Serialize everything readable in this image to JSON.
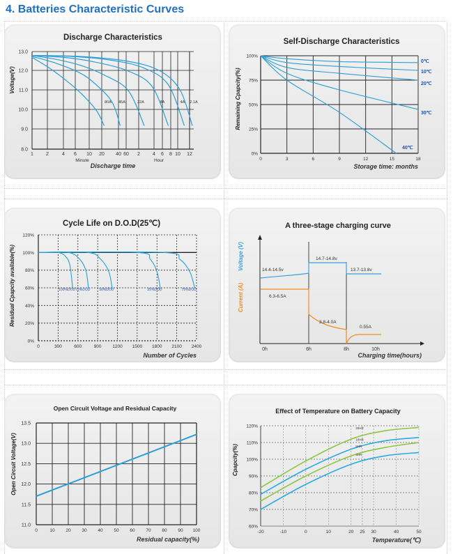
{
  "page": {
    "title": "4.  Batteries Characteristic Curves"
  },
  "chart_data": [
    {
      "id": "discharge",
      "type": "line",
      "title": "Discharge Characteristics",
      "ylabel": "Voltage(V)",
      "xlabel": "Discharge time",
      "x_group_labels": [
        "Minute",
        "Hour"
      ],
      "y_ticks": [
        "13.0",
        "12.0",
        "11.0",
        "10.0",
        "9.0",
        "8.0"
      ],
      "ylim": [
        8,
        13
      ],
      "x_ticks": [
        "1",
        "2",
        "4",
        "6",
        "10",
        "20",
        "40",
        "60",
        "2",
        "4",
        "6",
        "8",
        "10",
        "12"
      ],
      "series": [
        {
          "name": "80A",
          "points": [
            [
              0,
              12.7
            ],
            [
              2,
              12.2
            ],
            [
              4,
              11.6
            ],
            [
              6,
              10.9
            ],
            [
              8,
              10.0
            ],
            [
              9,
              9.2
            ]
          ]
        },
        {
          "name": "45A",
          "points": [
            [
              0,
              12.75
            ],
            [
              3,
              12.4
            ],
            [
              6,
              11.9
            ],
            [
              8,
              11.3
            ],
            [
              10,
              10.4
            ],
            [
              11,
              9.2
            ]
          ]
        },
        {
          "name": "22A",
          "points": [
            [
              0,
              12.8
            ],
            [
              3,
              12.6
            ],
            [
              6,
              12.3
            ],
            [
              9,
              11.8
            ],
            [
              12,
              11.0
            ],
            [
              14,
              9.2
            ]
          ]
        },
        {
          "name": "8A",
          "points": [
            [
              0,
              12.8
            ],
            [
              4,
              12.7
            ],
            [
              8,
              12.45
            ],
            [
              12,
              12.0
            ],
            [
              15,
              11.2
            ],
            [
              17,
              9.2
            ]
          ]
        },
        {
          "name": "4A",
          "points": [
            [
              0,
              12.8
            ],
            [
              5,
              12.75
            ],
            [
              10,
              12.55
            ],
            [
              14,
              12.15
            ],
            [
              17,
              11.3
            ],
            [
              19,
              9.2
            ]
          ]
        },
        {
          "name": "2.1A",
          "points": [
            [
              0,
              12.8
            ],
            [
              6,
              12.75
            ],
            [
              12,
              12.5
            ],
            [
              16,
              12.0
            ],
            [
              18.5,
              11.0
            ],
            [
              20,
              9.2
            ]
          ]
        }
      ]
    },
    {
      "id": "self-discharge",
      "type": "line",
      "title": "Self-Discharge Characteristics",
      "ylabel": "Remaining Cpapcity(%)",
      "xlabel": "Storage time: months",
      "y_ticks": [
        "100%",
        "75%",
        "50%",
        "25%",
        "0%"
      ],
      "x_ticks": [
        "0",
        "3",
        "6",
        "9",
        "12",
        "15",
        "18"
      ],
      "xlim": [
        0,
        18
      ],
      "ylim": [
        0,
        100
      ],
      "series": [
        {
          "name": "0℃",
          "points": [
            [
              0,
              100
            ],
            [
              3,
              97
            ],
            [
              9,
              94
            ],
            [
              18,
              93
            ]
          ]
        },
        {
          "name": "10℃",
          "points": [
            [
              0,
              100
            ],
            [
              3,
              93
            ],
            [
              9,
              89
            ],
            [
              18,
              85
            ]
          ]
        },
        {
          "name": "20℃",
          "points": [
            [
              0,
              100
            ],
            [
              3,
              88
            ],
            [
              9,
              82
            ],
            [
              18,
              75
            ]
          ]
        },
        {
          "name": "30℃",
          "points": [
            [
              0,
              100
            ],
            [
              3,
              82
            ],
            [
              9,
              65
            ],
            [
              18,
              45
            ]
          ]
        },
        {
          "name": "40℃",
          "points": [
            [
              0,
              100
            ],
            [
              3,
              75
            ],
            [
              9,
              42
            ],
            [
              15.5,
              0
            ]
          ]
        }
      ]
    },
    {
      "id": "cycle-life",
      "type": "line",
      "title": "Cycle Life on D.O.D(25℃)",
      "ylabel": "Residual Cpapcity available(%)",
      "xlabel": "Number of Cycles",
      "y_ticks": [
        "120%",
        "100%",
        "80%",
        "60%",
        "40%",
        "20%",
        "0%"
      ],
      "x_ticks": [
        "0",
        "300",
        "600",
        "900",
        "1200",
        "1500",
        "1800",
        "2100",
        "2400"
      ],
      "xlim": [
        0,
        2400
      ],
      "ylim": [
        0,
        120
      ],
      "series": [
        {
          "name": "100%DOD",
          "points": [
            [
              0,
              100
            ],
            [
              300,
              100
            ],
            [
              420,
              95
            ],
            [
              480,
              85
            ],
            [
              520,
              60
            ]
          ]
        },
        {
          "name": "75%DOD",
          "points": [
            [
              0,
              100
            ],
            [
              450,
              100
            ],
            [
              620,
              93
            ],
            [
              720,
              80
            ],
            [
              760,
              60
            ]
          ]
        },
        {
          "name": "50%DOD",
          "points": [
            [
              0,
              100
            ],
            [
              750,
              100
            ],
            [
              950,
              92
            ],
            [
              1070,
              78
            ],
            [
              1120,
              60
            ]
          ]
        },
        {
          "name": "25%DOD",
          "points": [
            [
              0,
              100
            ],
            [
              1500,
              100
            ],
            [
              1700,
              92
            ],
            [
              1800,
              78
            ],
            [
              1850,
              60
            ]
          ]
        },
        {
          "name": "75%DOD",
          "points": [
            [
              0,
              100
            ],
            [
              1900,
              100
            ],
            [
              2150,
              92
            ],
            [
              2300,
              78
            ],
            [
              2370,
              60
            ]
          ]
        }
      ]
    },
    {
      "id": "charging",
      "type": "line",
      "title": "A three-stage charging curve",
      "ylabel_voltage": "Voltage (V)",
      "ylabel_current": "Current (A)",
      "xlabel": "Charging time(hours)",
      "x_ticks": [
        "0h",
        "6h",
        "8h",
        "10h"
      ],
      "voltage_labels": [
        "14.4-14.5v",
        "14.7-14.8v",
        "13.7-13.8v"
      ],
      "current_labels": [
        "6.3-6.5A",
        "3.8-4.0A",
        "0.55A"
      ],
      "colors": {
        "voltage": "#3aa0e0",
        "current": "#f08c1e"
      }
    },
    {
      "id": "ocv",
      "type": "line",
      "title": "Open Circuit Voltage and Residual Capacity",
      "ylabel": "Open Circuit Voltage(V)",
      "xlabel": "Residual capacity(%)",
      "y_ticks": [
        "13.5",
        "13.0",
        "12.5",
        "12.0",
        "11.5",
        "11.0"
      ],
      "x_ticks": [
        "0",
        "10",
        "20",
        "30",
        "40",
        "50",
        "60",
        "70",
        "80",
        "90",
        "100"
      ],
      "xlim": [
        0,
        100
      ],
      "ylim": [
        11.0,
        13.5
      ],
      "series": [
        {
          "points": [
            [
              0,
              11.7
            ],
            [
              100,
              13.22
            ]
          ]
        }
      ]
    },
    {
      "id": "temperature",
      "type": "line",
      "title": "Effect of Temperature on Battery Capacity",
      "ylabel": "Cpapcity(%)",
      "xlabel": "Temperature(℃)",
      "y_ticks": [
        "120%",
        "110%",
        "100%",
        "90%",
        "80%",
        "70%",
        "60%"
      ],
      "x_ticks": [
        "-20",
        "-10",
        "0",
        "10",
        "20",
        "25",
        "30",
        "40",
        "50"
      ],
      "xlim": [
        -20,
        50
      ],
      "ylim": [
        60,
        120
      ],
      "series": [
        {
          "name": "20HR",
          "color": "#8dc63f",
          "points": [
            [
              -20,
              83
            ],
            [
              0,
              99
            ],
            [
              20,
              112
            ],
            [
              35,
              117
            ],
            [
              50,
              119
            ]
          ]
        },
        {
          "name": "10HR",
          "color": "#29abe2",
          "points": [
            [
              -20,
              79
            ],
            [
              0,
              94
            ],
            [
              20,
              106
            ],
            [
              35,
              111
            ],
            [
              50,
              113
            ]
          ]
        },
        {
          "name": "5HR",
          "color": "#8dc63f",
          "points": [
            [
              -20,
              75
            ],
            [
              0,
              90
            ],
            [
              20,
              102
            ],
            [
              35,
              107
            ],
            [
              50,
              110
            ]
          ]
        },
        {
          "name": "3HR",
          "color": "#29abe2",
          "points": [
            [
              -20,
              70
            ],
            [
              0,
              85
            ],
            [
              20,
              97
            ],
            [
              35,
              102
            ],
            [
              50,
              104
            ]
          ]
        }
      ]
    }
  ]
}
